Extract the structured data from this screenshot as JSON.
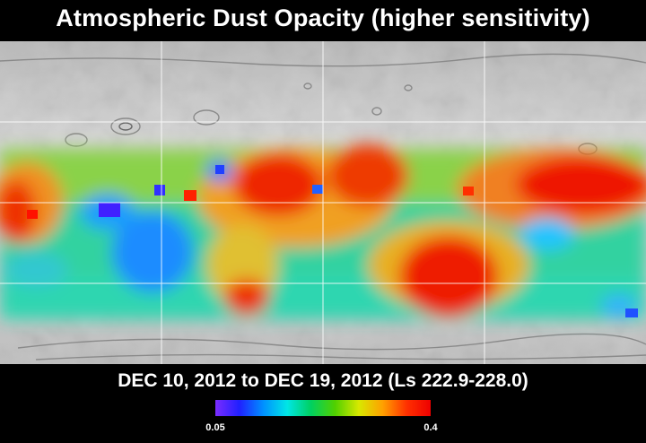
{
  "title": "Atmospheric Dust Opacity (higher sensitivity)",
  "date_range": "DEC 10, 2012 to DEC 19, 2012 (Ls 222.9-228.0)",
  "colorbar": {
    "min_label": "0.05",
    "max_label": "0.4",
    "min_value": 0.05,
    "max_value": 0.4,
    "colors": [
      "#7a2cff",
      "#2020ff",
      "#0090ff",
      "#00e6e6",
      "#00d060",
      "#50d000",
      "#d8e800",
      "#ffa000",
      "#ff3000",
      "#ee0000"
    ]
  }
}
